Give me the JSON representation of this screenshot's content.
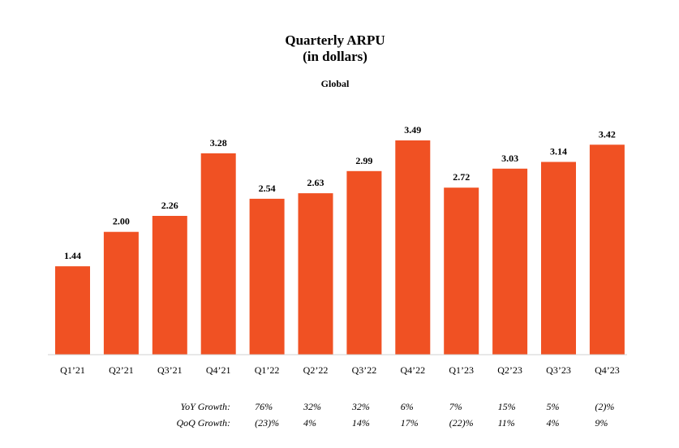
{
  "chart_data": {
    "type": "bar",
    "title": "Quarterly ARPU",
    "subtitle": "(in dollars)",
    "region_label": "Global",
    "categories": [
      "Q1’21",
      "Q2’21",
      "Q3’21",
      "Q4’21",
      "Q1’22",
      "Q2’22",
      "Q3’22",
      "Q4’22",
      "Q1’23",
      "Q2’23",
      "Q3’23",
      "Q4’23"
    ],
    "values": [
      1.44,
      2.0,
      2.26,
      3.28,
      2.54,
      2.63,
      2.99,
      3.49,
      2.72,
      3.03,
      3.14,
      3.42
    ],
    "value_labels": [
      "1.44",
      "2.00",
      "2.26",
      "3.28",
      "2.54",
      "2.63",
      "2.99",
      "3.49",
      "2.72",
      "3.03",
      "3.14",
      "3.42"
    ],
    "ylim": [
      0,
      3.49
    ],
    "bar_color": "#F05123",
    "grid": false,
    "growth_rows": [
      {
        "label": "YoY Growth:",
        "values": [
          "76%",
          "32%",
          "32%",
          "6%",
          "7%",
          "15%",
          "5%",
          "(2)%"
        ]
      },
      {
        "label": "QoQ Growth:",
        "values": [
          "(23)%",
          "4%",
          "14%",
          "17%",
          "(22)%",
          "11%",
          "4%",
          "9%"
        ]
      }
    ]
  }
}
